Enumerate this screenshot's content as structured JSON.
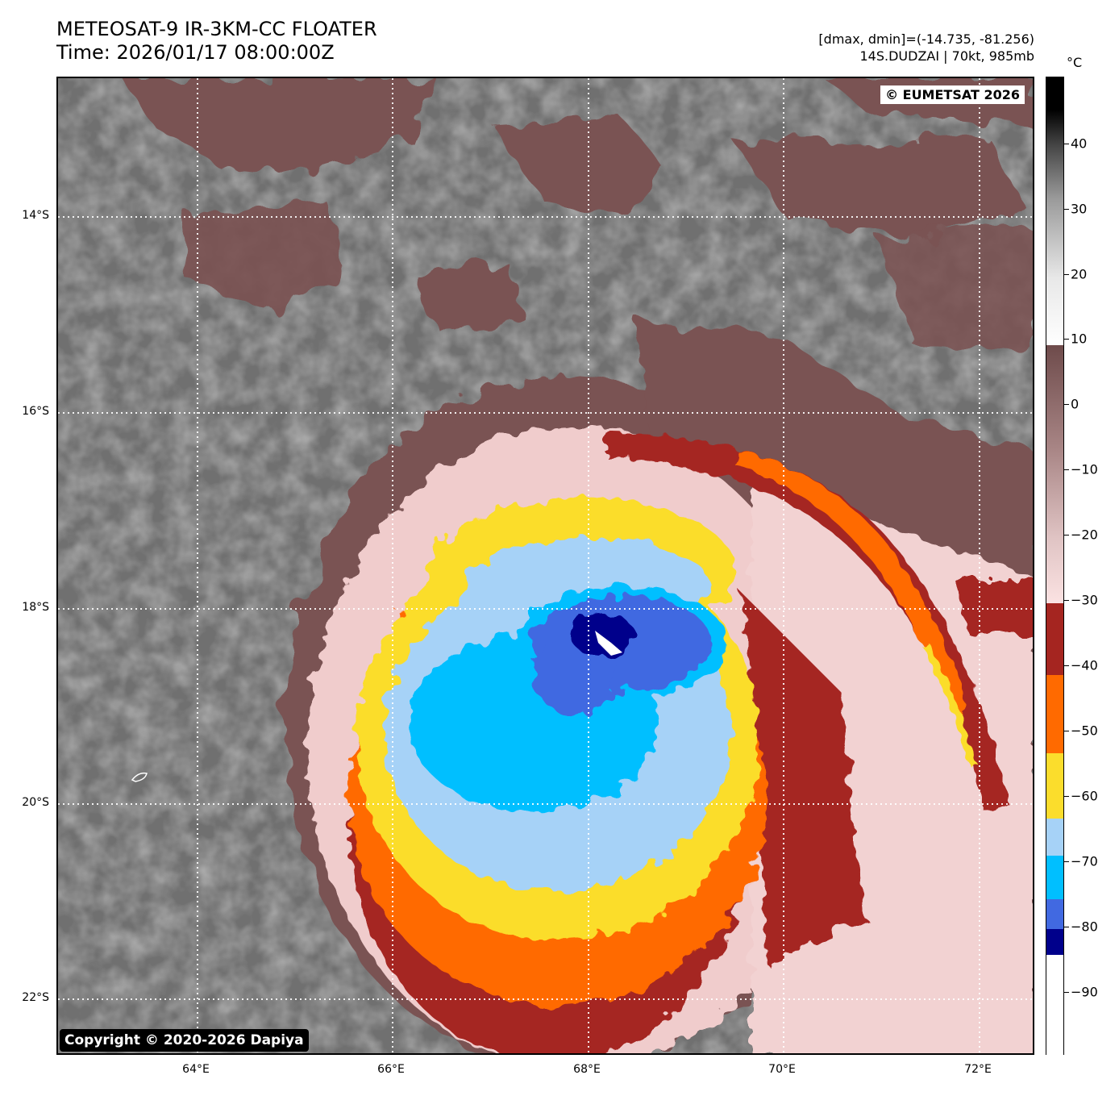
{
  "header": {
    "title_line1": "METEOSAT-9 IR-3KM-CC FLOATER",
    "title_line2": "Time: 2026/01/17 08:00:00Z",
    "range_text": "[dmax, dmin]=(-14.735, -81.256)",
    "storm_text": "14S.DUDZAI | 70kt, 985mb"
  },
  "map": {
    "eumetsat_label": "© EUMETSAT 2026",
    "copyright_label": "Copyright © 2020-2026 Dapiya",
    "lat_ticks": [
      "14°S",
      "16°S",
      "18°S",
      "20°S",
      "22°S"
    ],
    "lon_ticks": [
      "64°E",
      "66°E",
      "68°E",
      "70°E",
      "72°E"
    ]
  },
  "colorbar": {
    "unit": "°C",
    "labels": [
      "40",
      "30",
      "20",
      "10",
      "0",
      "−10",
      "−20",
      "−30",
      "−40",
      "−50",
      "−60",
      "−70",
      "−80",
      "−90"
    ],
    "colors": {
      "cold_white": "#ffffff",
      "navy": "#00008b",
      "royal_blue": "#4169e1",
      "deep_sky": "#00bfff",
      "light_blue": "#a6d2f7",
      "yellow": "#fbdd2c",
      "orange": "#ff6a00",
      "dark_red": "#a52520",
      "pink": "#f5d6d6",
      "brown": "#7a5252"
    }
  }
}
